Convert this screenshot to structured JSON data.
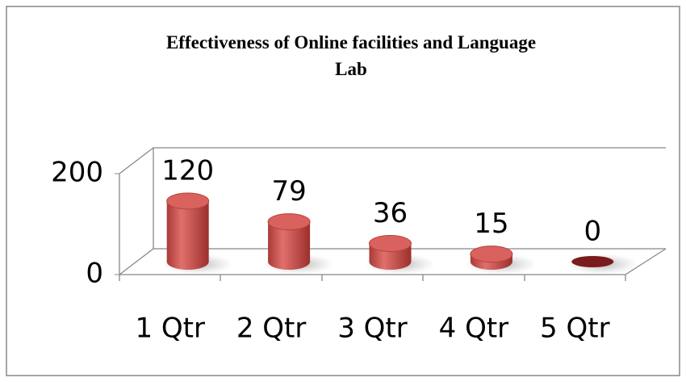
{
  "chart_data": {
    "type": "bar",
    "title": "Effectiveness of Online facilities and Language Lab",
    "categories": [
      "1 Qtr",
      "2 Qtr",
      "3 Qtr",
      "4 Qtr",
      "5 Qtr"
    ],
    "values": [
      120,
      79,
      36,
      15,
      0
    ],
    "color": "#c0504d",
    "ylim": [
      0,
      200
    ],
    "yticks": [
      0,
      200
    ],
    "grid": false
  }
}
